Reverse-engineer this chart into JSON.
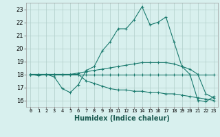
{
  "xlabel": "Humidex (Indice chaleur)",
  "x_ticks": [
    0,
    1,
    2,
    3,
    4,
    5,
    6,
    7,
    8,
    9,
    10,
    11,
    12,
    13,
    14,
    15,
    16,
    17,
    18,
    19,
    20,
    21,
    22,
    23
  ],
  "ylim": [
    15.5,
    23.5
  ],
  "xlim": [
    -0.5,
    23.5
  ],
  "yticks": [
    16,
    17,
    18,
    19,
    20,
    21,
    22,
    23
  ],
  "background_color": "#d8f0ee",
  "grid_color": "#b0ceca",
  "line_color": "#1a7a6e",
  "series": [
    [
      18.0,
      17.9,
      18.0,
      17.8,
      16.9,
      16.6,
      17.2,
      18.3,
      18.6,
      19.8,
      20.5,
      21.5,
      21.5,
      22.2,
      23.2,
      21.8,
      22.0,
      22.4,
      20.5,
      18.6,
      18.0,
      16.0,
      15.9,
      16.3
    ],
    [
      18.0,
      18.0,
      18.0,
      18.0,
      18.0,
      18.0,
      18.0,
      18.0,
      18.0,
      18.0,
      18.0,
      18.0,
      18.0,
      18.0,
      18.0,
      18.0,
      18.0,
      18.0,
      18.0,
      18.0,
      18.0,
      18.0,
      18.0,
      18.0
    ],
    [
      18.0,
      18.0,
      18.0,
      18.0,
      18.0,
      18.0,
      18.1,
      18.2,
      18.3,
      18.4,
      18.5,
      18.6,
      18.7,
      18.8,
      18.9,
      18.9,
      18.9,
      18.9,
      18.8,
      18.6,
      18.4,
      18.0,
      16.5,
      16.2
    ],
    [
      18.0,
      18.0,
      18.0,
      18.0,
      18.0,
      18.0,
      18.0,
      17.5,
      17.3,
      17.1,
      16.9,
      16.8,
      16.8,
      16.7,
      16.7,
      16.6,
      16.6,
      16.5,
      16.5,
      16.4,
      16.3,
      16.2,
      16.1,
      16.0
    ]
  ],
  "xlabel_fontsize": 7,
  "xtick_fontsize": 5,
  "ytick_fontsize": 6
}
